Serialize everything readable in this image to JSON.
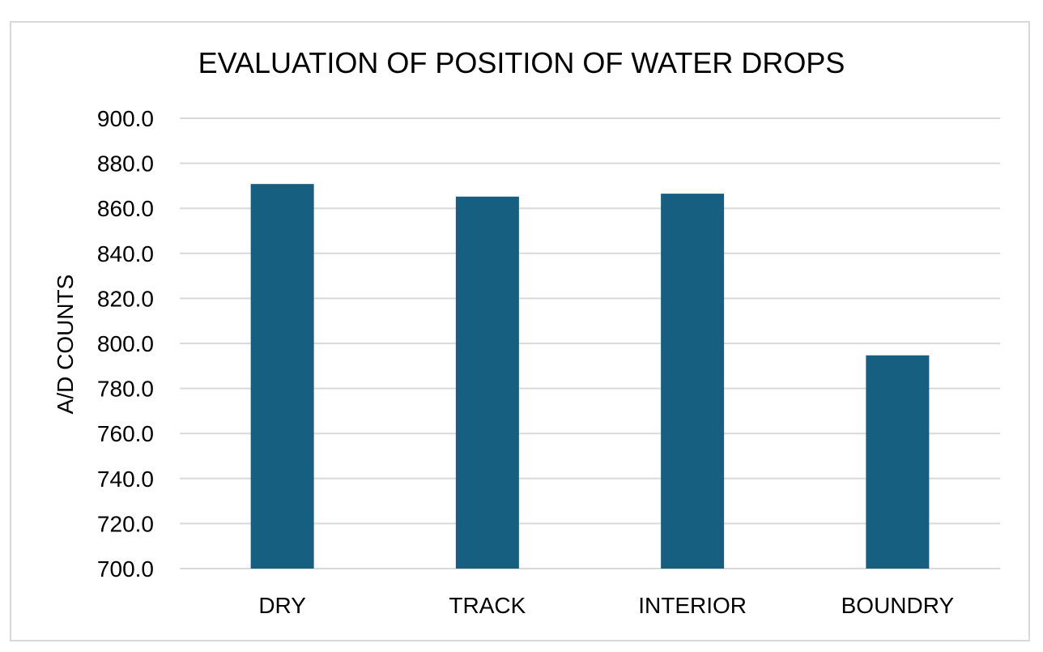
{
  "chart_data": {
    "type": "bar",
    "title": "EVALUATION OF POSITION OF WATER DROPS",
    "xlabel": "",
    "ylabel": "A/D COUNTS",
    "categories": [
      "DRY",
      "TRACK",
      "INTERIOR",
      "BOUNDRY"
    ],
    "values": [
      870.8,
      865.2,
      866.5,
      794.7
    ],
    "ylim": [
      700,
      900
    ],
    "yticks": [
      "700.0",
      "720.0",
      "740.0",
      "760.0",
      "780.0",
      "800.0",
      "820.0",
      "840.0",
      "860.0",
      "880.0",
      "900.0"
    ],
    "grid": true,
    "legend": "none",
    "bar_color": "#175f80"
  },
  "colors": {
    "bar": "#175f80",
    "grid": "#d9d9d9",
    "frame": "#d9d9d9"
  }
}
